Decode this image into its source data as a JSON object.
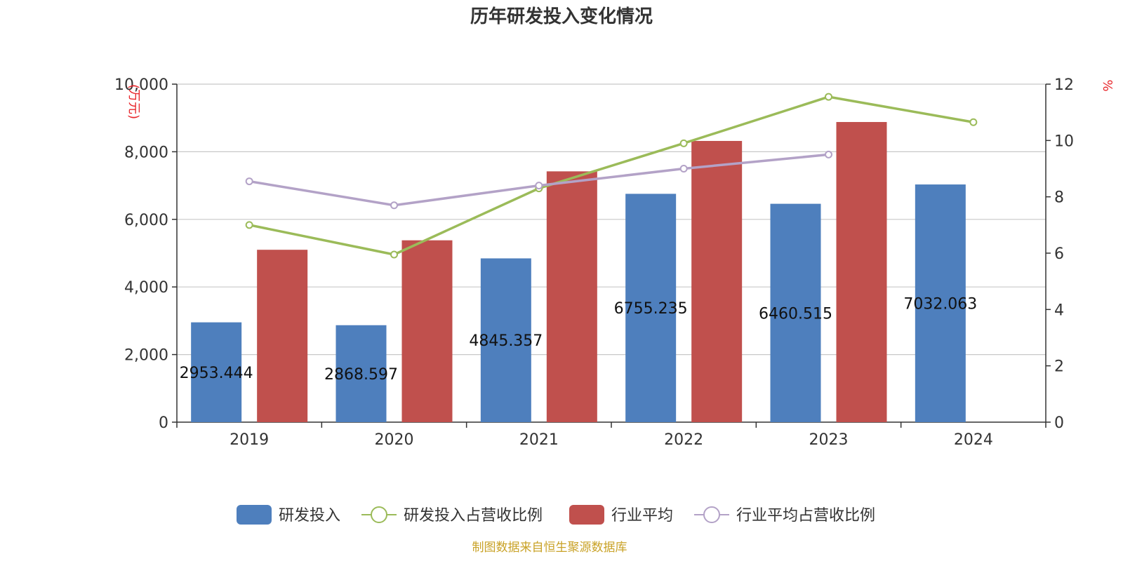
{
  "chart_data": {
    "type": "bar",
    "title": "历年研发投入变化情况",
    "categories": [
      "2019",
      "2020",
      "2021",
      "2022",
      "2023",
      "2024"
    ],
    "y_left": {
      "unit": "(万元)",
      "ticks": [
        "0",
        "2,000",
        "4,000",
        "6,000",
        "8,000",
        "10,000"
      ],
      "range": [
        0,
        10000
      ]
    },
    "y_right": {
      "unit": "%",
      "ticks": [
        "0",
        "2",
        "4",
        "6",
        "8",
        "10",
        "12"
      ],
      "range": [
        0,
        12
      ]
    },
    "grid": true,
    "legend_position": "bottom",
    "series": [
      {
        "name": "研发投入",
        "kind": "bar",
        "axis": "left",
        "color": "#4e7fbd",
        "values": [
          2953.444,
          2868.597,
          4845.357,
          6755.235,
          6460.515,
          7032.063
        ],
        "labels": [
          "2953.444",
          "2868.597",
          "4845.357",
          "6755.235",
          "6460.515",
          "7032.063"
        ]
      },
      {
        "name": "研发投入占营收比例",
        "kind": "line",
        "axis": "right",
        "color": "#9bbb59",
        "values": [
          7.0,
          5.95,
          8.3,
          9.9,
          11.55,
          10.65
        ]
      },
      {
        "name": "行业平均",
        "kind": "bar",
        "axis": "left",
        "color": "#c0504d",
        "values": [
          5100,
          5380,
          7420,
          8320,
          8880,
          null
        ]
      },
      {
        "name": "行业平均占营收比例",
        "kind": "line",
        "axis": "right",
        "color": "#b3a2c7",
        "values": [
          8.55,
          7.7,
          8.4,
          9.0,
          9.5,
          null
        ]
      }
    ]
  },
  "footer": "制图数据来自恒生聚源数据库"
}
